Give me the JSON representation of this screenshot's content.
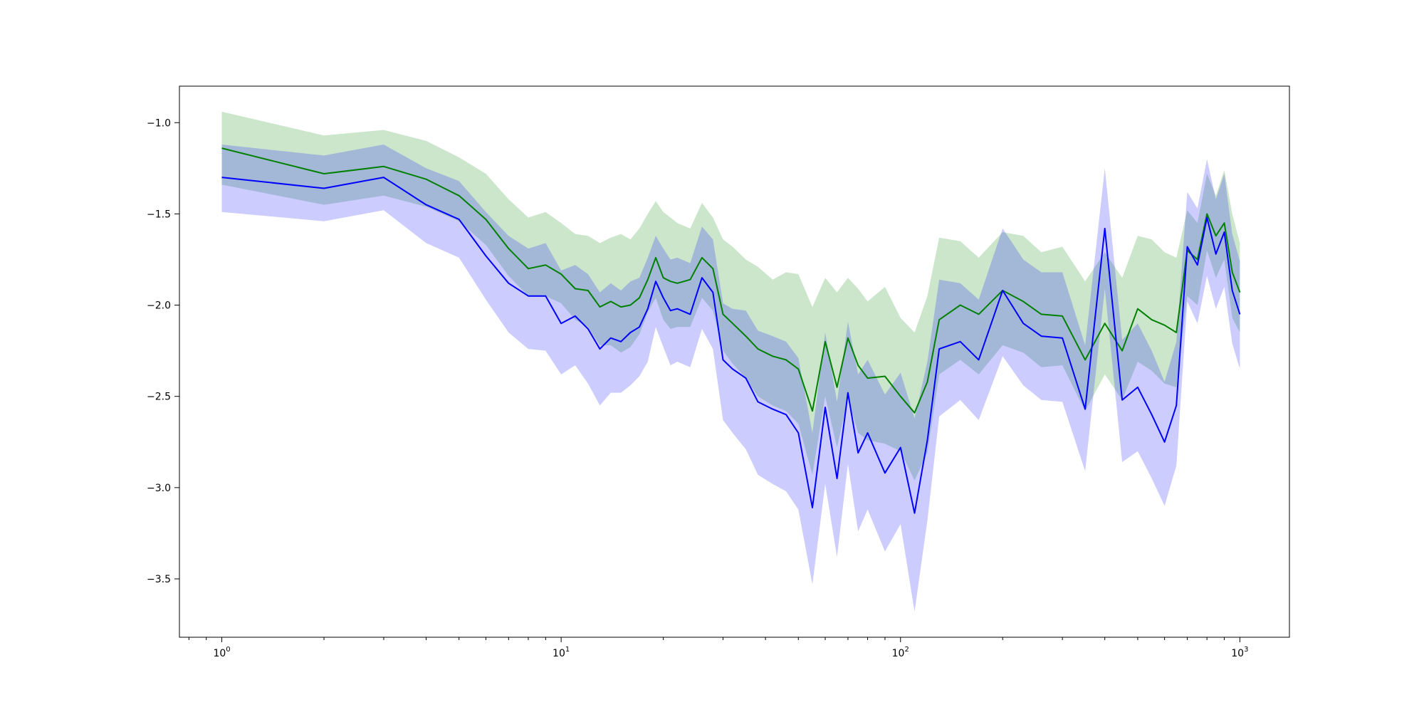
{
  "chart_data": {
    "type": "line",
    "title": "",
    "xlabel": "",
    "ylabel": "",
    "xscale": "log",
    "xlim": [
      0.75,
      1400
    ],
    "ylim": [
      -3.82,
      -0.8
    ],
    "grid": false,
    "legend": "none",
    "x_ticks": [
      {
        "value": 1,
        "base": "10",
        "exp": "0"
      },
      {
        "value": 10,
        "base": "10",
        "exp": "1"
      },
      {
        "value": 100,
        "base": "10",
        "exp": "2"
      },
      {
        "value": 1000,
        "base": "10",
        "exp": "3"
      }
    ],
    "y_ticks": [
      {
        "value": -1.0,
        "label": "−1.0"
      },
      {
        "value": -1.5,
        "label": "−1.5"
      },
      {
        "value": -2.0,
        "label": "−2.0"
      },
      {
        "value": -2.5,
        "label": "−2.5"
      },
      {
        "value": -3.0,
        "label": "−3.0"
      },
      {
        "value": -3.5,
        "label": "−3.5"
      }
    ],
    "series": [
      {
        "color": "#008000",
        "band_color": "#008000",
        "band_opacity": 0.2,
        "x": [
          1,
          2,
          3,
          4,
          5,
          6,
          7,
          8,
          9,
          10,
          11,
          12,
          13,
          14,
          15,
          16,
          17,
          18,
          19,
          20,
          21,
          22,
          24,
          26,
          28,
          30,
          32,
          35,
          38,
          42,
          46,
          50,
          55,
          60,
          65,
          70,
          75,
          80,
          90,
          100,
          110,
          120,
          130,
          150,
          170,
          200,
          230,
          260,
          300,
          350,
          400,
          450,
          500,
          550,
          600,
          650,
          700,
          750,
          800,
          850,
          900,
          950,
          1000
        ],
        "y": [
          -1.14,
          -1.28,
          -1.24,
          -1.31,
          -1.4,
          -1.53,
          -1.69,
          -1.8,
          -1.78,
          -1.83,
          -1.91,
          -1.92,
          -2.01,
          -1.98,
          -2.01,
          -2.0,
          -1.96,
          -1.86,
          -1.74,
          -1.85,
          -1.87,
          -1.88,
          -1.86,
          -1.74,
          -1.8,
          -2.05,
          -2.1,
          -2.17,
          -2.24,
          -2.28,
          -2.3,
          -2.35,
          -2.58,
          -2.2,
          -2.45,
          -2.18,
          -2.33,
          -2.4,
          -2.39,
          -2.5,
          -2.59,
          -2.42,
          -2.08,
          -2.0,
          -2.05,
          -1.92,
          -1.98,
          -2.05,
          -2.06,
          -2.3,
          -2.1,
          -2.25,
          -2.02,
          -2.08,
          -2.11,
          -2.15,
          -1.7,
          -1.75,
          -1.5,
          -1.62,
          -1.55,
          -1.82,
          -1.93
        ],
        "lower": [
          -1.34,
          -1.45,
          -1.4,
          -1.46,
          -1.54,
          -1.67,
          -1.84,
          -1.95,
          -1.95,
          -1.99,
          -2.08,
          -2.12,
          -2.22,
          -2.22,
          -2.26,
          -2.23,
          -2.16,
          -2.04,
          -1.96,
          -2.08,
          -2.13,
          -2.12,
          -2.12,
          -1.96,
          -2.03,
          -2.25,
          -2.32,
          -2.4,
          -2.5,
          -2.55,
          -2.58,
          -2.65,
          -2.93,
          -2.5,
          -2.78,
          -2.51,
          -2.7,
          -2.74,
          -2.76,
          -2.8,
          -2.96,
          -2.81,
          -2.38,
          -2.3,
          -2.38,
          -2.22,
          -2.26,
          -2.34,
          -2.33,
          -2.58,
          -2.38,
          -2.52,
          -2.31,
          -2.36,
          -2.43,
          -2.45,
          -1.95,
          -2.0,
          -1.7,
          -1.85,
          -1.75,
          -2.07,
          -2.15
        ],
        "upper": [
          -0.94,
          -1.07,
          -1.04,
          -1.1,
          -1.19,
          -1.28,
          -1.42,
          -1.52,
          -1.49,
          -1.55,
          -1.61,
          -1.62,
          -1.66,
          -1.63,
          -1.61,
          -1.64,
          -1.58,
          -1.5,
          -1.43,
          -1.49,
          -1.52,
          -1.55,
          -1.58,
          -1.44,
          -1.52,
          -1.64,
          -1.68,
          -1.75,
          -1.79,
          -1.86,
          -1.82,
          -1.83,
          -2.01,
          -1.85,
          -1.93,
          -1.85,
          -1.91,
          -1.98,
          -1.9,
          -2.07,
          -2.15,
          -1.95,
          -1.63,
          -1.65,
          -1.74,
          -1.6,
          -1.62,
          -1.71,
          -1.68,
          -1.87,
          -1.71,
          -1.85,
          -1.62,
          -1.64,
          -1.71,
          -1.74,
          -1.48,
          -1.55,
          -1.28,
          -1.4,
          -1.26,
          -1.5,
          -1.66
        ]
      },
      {
        "color": "#0000ff",
        "band_color": "#0000ff",
        "band_opacity": 0.2,
        "x": [
          1,
          2,
          3,
          4,
          5,
          6,
          7,
          8,
          9,
          10,
          11,
          12,
          13,
          14,
          15,
          16,
          17,
          18,
          19,
          20,
          21,
          22,
          24,
          26,
          28,
          30,
          32,
          35,
          38,
          42,
          46,
          50,
          55,
          60,
          65,
          70,
          75,
          80,
          90,
          100,
          110,
          120,
          130,
          150,
          170,
          200,
          230,
          260,
          300,
          350,
          400,
          450,
          500,
          550,
          600,
          650,
          700,
          750,
          800,
          850,
          900,
          950,
          1000
        ],
        "y": [
          -1.3,
          -1.36,
          -1.3,
          -1.45,
          -1.53,
          -1.73,
          -1.88,
          -1.95,
          -1.95,
          -2.1,
          -2.06,
          -2.13,
          -2.24,
          -2.18,
          -2.2,
          -2.15,
          -2.12,
          -2.02,
          -1.87,
          -1.96,
          -2.03,
          -2.02,
          -2.05,
          -1.85,
          -1.93,
          -2.3,
          -2.35,
          -2.4,
          -2.53,
          -2.57,
          -2.6,
          -2.7,
          -3.11,
          -2.56,
          -2.95,
          -2.48,
          -2.81,
          -2.7,
          -2.92,
          -2.78,
          -3.14,
          -2.74,
          -2.24,
          -2.2,
          -2.3,
          -1.92,
          -2.1,
          -2.17,
          -2.18,
          -2.57,
          -1.58,
          -2.52,
          -2.45,
          -2.6,
          -2.75,
          -2.55,
          -1.68,
          -1.78,
          -1.52,
          -1.72,
          -1.6,
          -1.92,
          -2.05
        ],
        "lower": [
          -1.49,
          -1.54,
          -1.48,
          -1.66,
          -1.74,
          -1.97,
          -2.15,
          -2.24,
          -2.25,
          -2.38,
          -2.33,
          -2.43,
          -2.55,
          -2.48,
          -2.48,
          -2.44,
          -2.39,
          -2.31,
          -2.12,
          -2.23,
          -2.33,
          -2.31,
          -2.34,
          -2.13,
          -2.24,
          -2.63,
          -2.7,
          -2.79,
          -2.93,
          -2.98,
          -3.02,
          -3.12,
          -3.53,
          -2.98,
          -3.38,
          -2.87,
          -3.24,
          -3.12,
          -3.35,
          -3.2,
          -3.68,
          -3.18,
          -2.61,
          -2.52,
          -2.63,
          -2.28,
          -2.44,
          -2.52,
          -2.53,
          -2.91,
          -1.91,
          -2.86,
          -2.8,
          -2.95,
          -3.1,
          -2.88,
          -1.98,
          -2.1,
          -1.84,
          -2.02,
          -1.9,
          -2.21,
          -2.35
        ],
        "upper": [
          -1.12,
          -1.18,
          -1.12,
          -1.25,
          -1.32,
          -1.49,
          -1.62,
          -1.69,
          -1.66,
          -1.81,
          -1.78,
          -1.83,
          -1.93,
          -1.88,
          -1.92,
          -1.87,
          -1.85,
          -1.74,
          -1.62,
          -1.69,
          -1.75,
          -1.74,
          -1.77,
          -1.57,
          -1.64,
          -1.99,
          -2.02,
          -2.03,
          -2.14,
          -2.17,
          -2.2,
          -2.29,
          -2.7,
          -2.15,
          -2.53,
          -2.09,
          -2.38,
          -2.3,
          -2.49,
          -2.37,
          -2.62,
          -2.31,
          -1.86,
          -1.88,
          -1.97,
          -1.58,
          -1.75,
          -1.82,
          -1.82,
          -2.22,
          -1.25,
          -2.19,
          -2.1,
          -2.25,
          -2.42,
          -2.2,
          -1.38,
          -1.47,
          -1.2,
          -1.42,
          -1.28,
          -1.61,
          -1.76
        ]
      }
    ]
  }
}
